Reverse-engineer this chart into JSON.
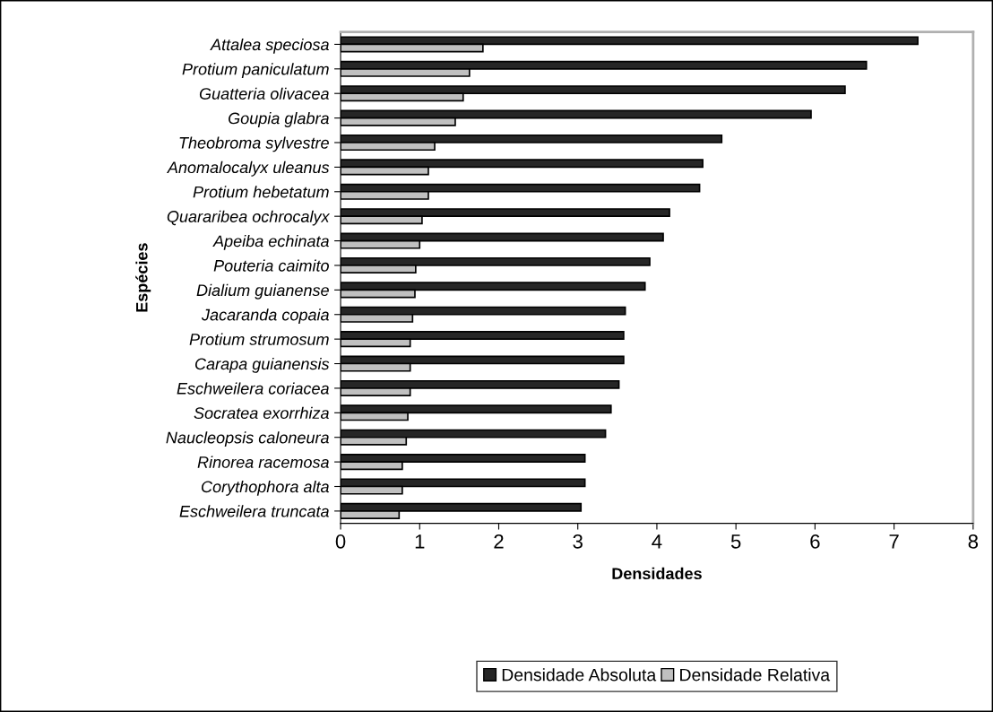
{
  "chart_data": {
    "type": "bar",
    "orientation": "horizontal",
    "xlabel": "Densidades",
    "ylabel": "Espécies",
    "categories": [
      "Attalea speciosa",
      "Protium paniculatum",
      "Guatteria olivacea",
      "Goupia glabra",
      "Theobroma sylvestre",
      "Anomalocalyx uleanus",
      "Protium hebetatum",
      "Quararibea ochrocalyx",
      "Apeiba echinata",
      "Pouteria caimito",
      "Dialium guianense",
      "Jacaranda copaia",
      "Protium strumosum",
      "Carapa guianensis",
      "Eschweilera coriacea",
      "Socratea exorrhiza",
      "Naucleopsis caloneura",
      "Rinorea racemosa",
      "Corythophora alta",
      "Eschweilera truncata"
    ],
    "series": [
      {
        "name": "Densidade Absoluta",
        "color": "#262626",
        "values": [
          7.3,
          6.65,
          6.38,
          5.95,
          4.82,
          4.58,
          4.54,
          4.16,
          4.08,
          3.91,
          3.85,
          3.6,
          3.58,
          3.58,
          3.52,
          3.42,
          3.35,
          3.09,
          3.09,
          3.04
        ]
      },
      {
        "name": "Densidade Relativa",
        "color": "#c0c0c0",
        "values": [
          1.8,
          1.63,
          1.55,
          1.45,
          1.19,
          1.11,
          1.11,
          1.03,
          1.0,
          0.95,
          0.94,
          0.91,
          0.88,
          0.88,
          0.88,
          0.85,
          0.83,
          0.78,
          0.78,
          0.74
        ]
      }
    ],
    "xlim": [
      0,
      8
    ],
    "xticks": [
      0,
      1,
      2,
      3,
      4,
      5,
      6,
      7,
      8
    ],
    "grid": false,
    "legend": "bottom"
  }
}
